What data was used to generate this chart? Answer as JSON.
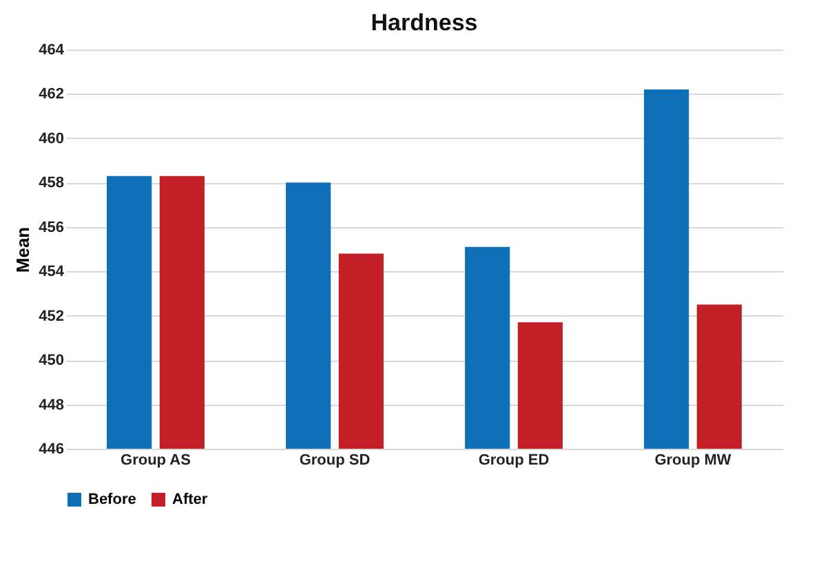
{
  "chart_data": {
    "type": "bar",
    "title": "Hardness",
    "ylabel": "Mean",
    "categories": [
      "Group AS",
      "Group SD",
      "Group ED",
      "Group MW"
    ],
    "series": [
      {
        "name": "Before",
        "color": "#0f70b7",
        "values": [
          458.3,
          458.0,
          455.1,
          462.2
        ]
      },
      {
        "name": "After",
        "color": "#c22026",
        "values": [
          458.3,
          454.8,
          451.7,
          452.5
        ]
      }
    ],
    "ylim": [
      446,
      464
    ],
    "yticks": [
      446,
      448,
      450,
      452,
      454,
      456,
      458,
      460,
      462,
      464
    ],
    "grid": "y",
    "legend": "bottom"
  }
}
